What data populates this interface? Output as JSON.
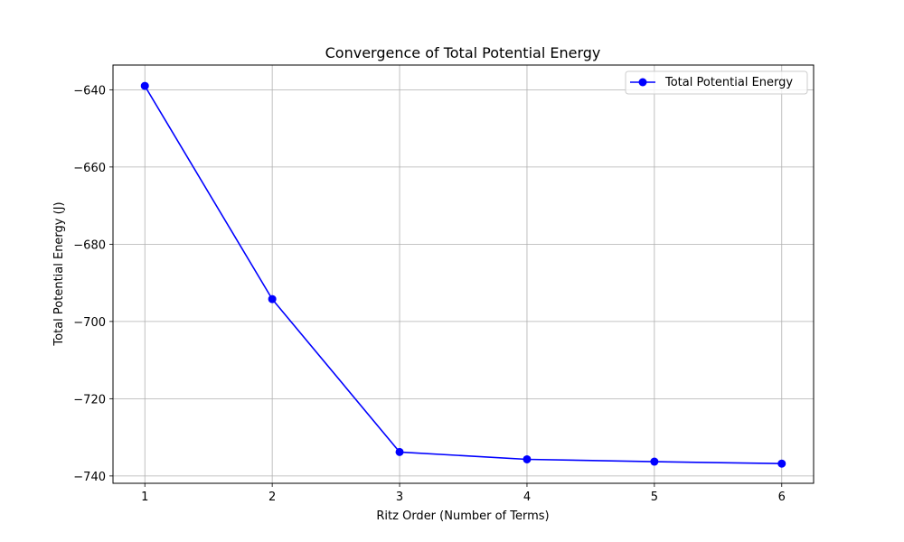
{
  "chart_data": {
    "type": "line",
    "title": "Convergence of Total Potential Energy",
    "xlabel": "Ritz Order (Number of Terms)",
    "ylabel": "Total Potential Energy (J)",
    "x": [
      1,
      2,
      3,
      4,
      5,
      6
    ],
    "x_ticks": [
      "1",
      "2",
      "3",
      "4",
      "5",
      "6"
    ],
    "y_ticks": [
      "−640",
      "−660",
      "−680",
      "−700",
      "−720",
      "−740"
    ],
    "y_tick_values": [
      -640,
      -660,
      -680,
      -700,
      -720,
      -740
    ],
    "xlim": [
      0.75,
      6.25
    ],
    "ylim": [
      -741.9,
      -633.6
    ],
    "grid": true,
    "legend_position": "upper right",
    "series": [
      {
        "name": "Total Potential Energy",
        "color": "#0000ff",
        "marker": "circle",
        "values": [
          -639.0,
          -694.2,
          -733.8,
          -735.7,
          -736.3,
          -736.8
        ]
      }
    ]
  }
}
